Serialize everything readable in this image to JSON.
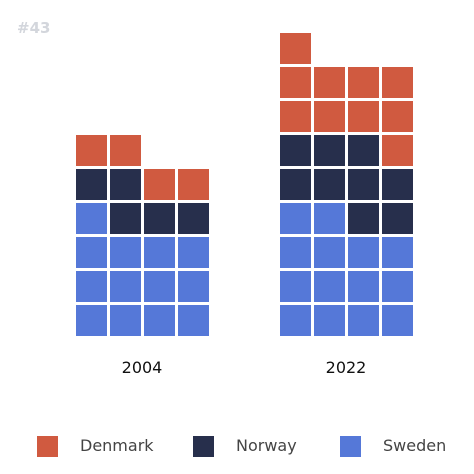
{
  "header": {
    "chart_id": "#43"
  },
  "chart_data": {
    "type": "waffle",
    "unit_per_square": 1,
    "columns_per_group": 4,
    "categories": [
      "2004",
      "2022"
    ],
    "series": [
      {
        "name": "Sweden",
        "color": "#5578d8",
        "values": [
          13,
          14
        ]
      },
      {
        "name": "Norway",
        "color": "#272f4c",
        "values": [
          5,
          9
        ]
      },
      {
        "name": "Denmark",
        "color": "#d05a40",
        "values": [
          4,
          10
        ]
      }
    ],
    "legend_position": "bottom",
    "grid": false
  },
  "legend": {
    "items": [
      {
        "label": "Denmark",
        "color": "#d05a40"
      },
      {
        "label": "Norway",
        "color": "#272f4c"
      },
      {
        "label": "Sweden",
        "color": "#5578d8"
      }
    ]
  }
}
